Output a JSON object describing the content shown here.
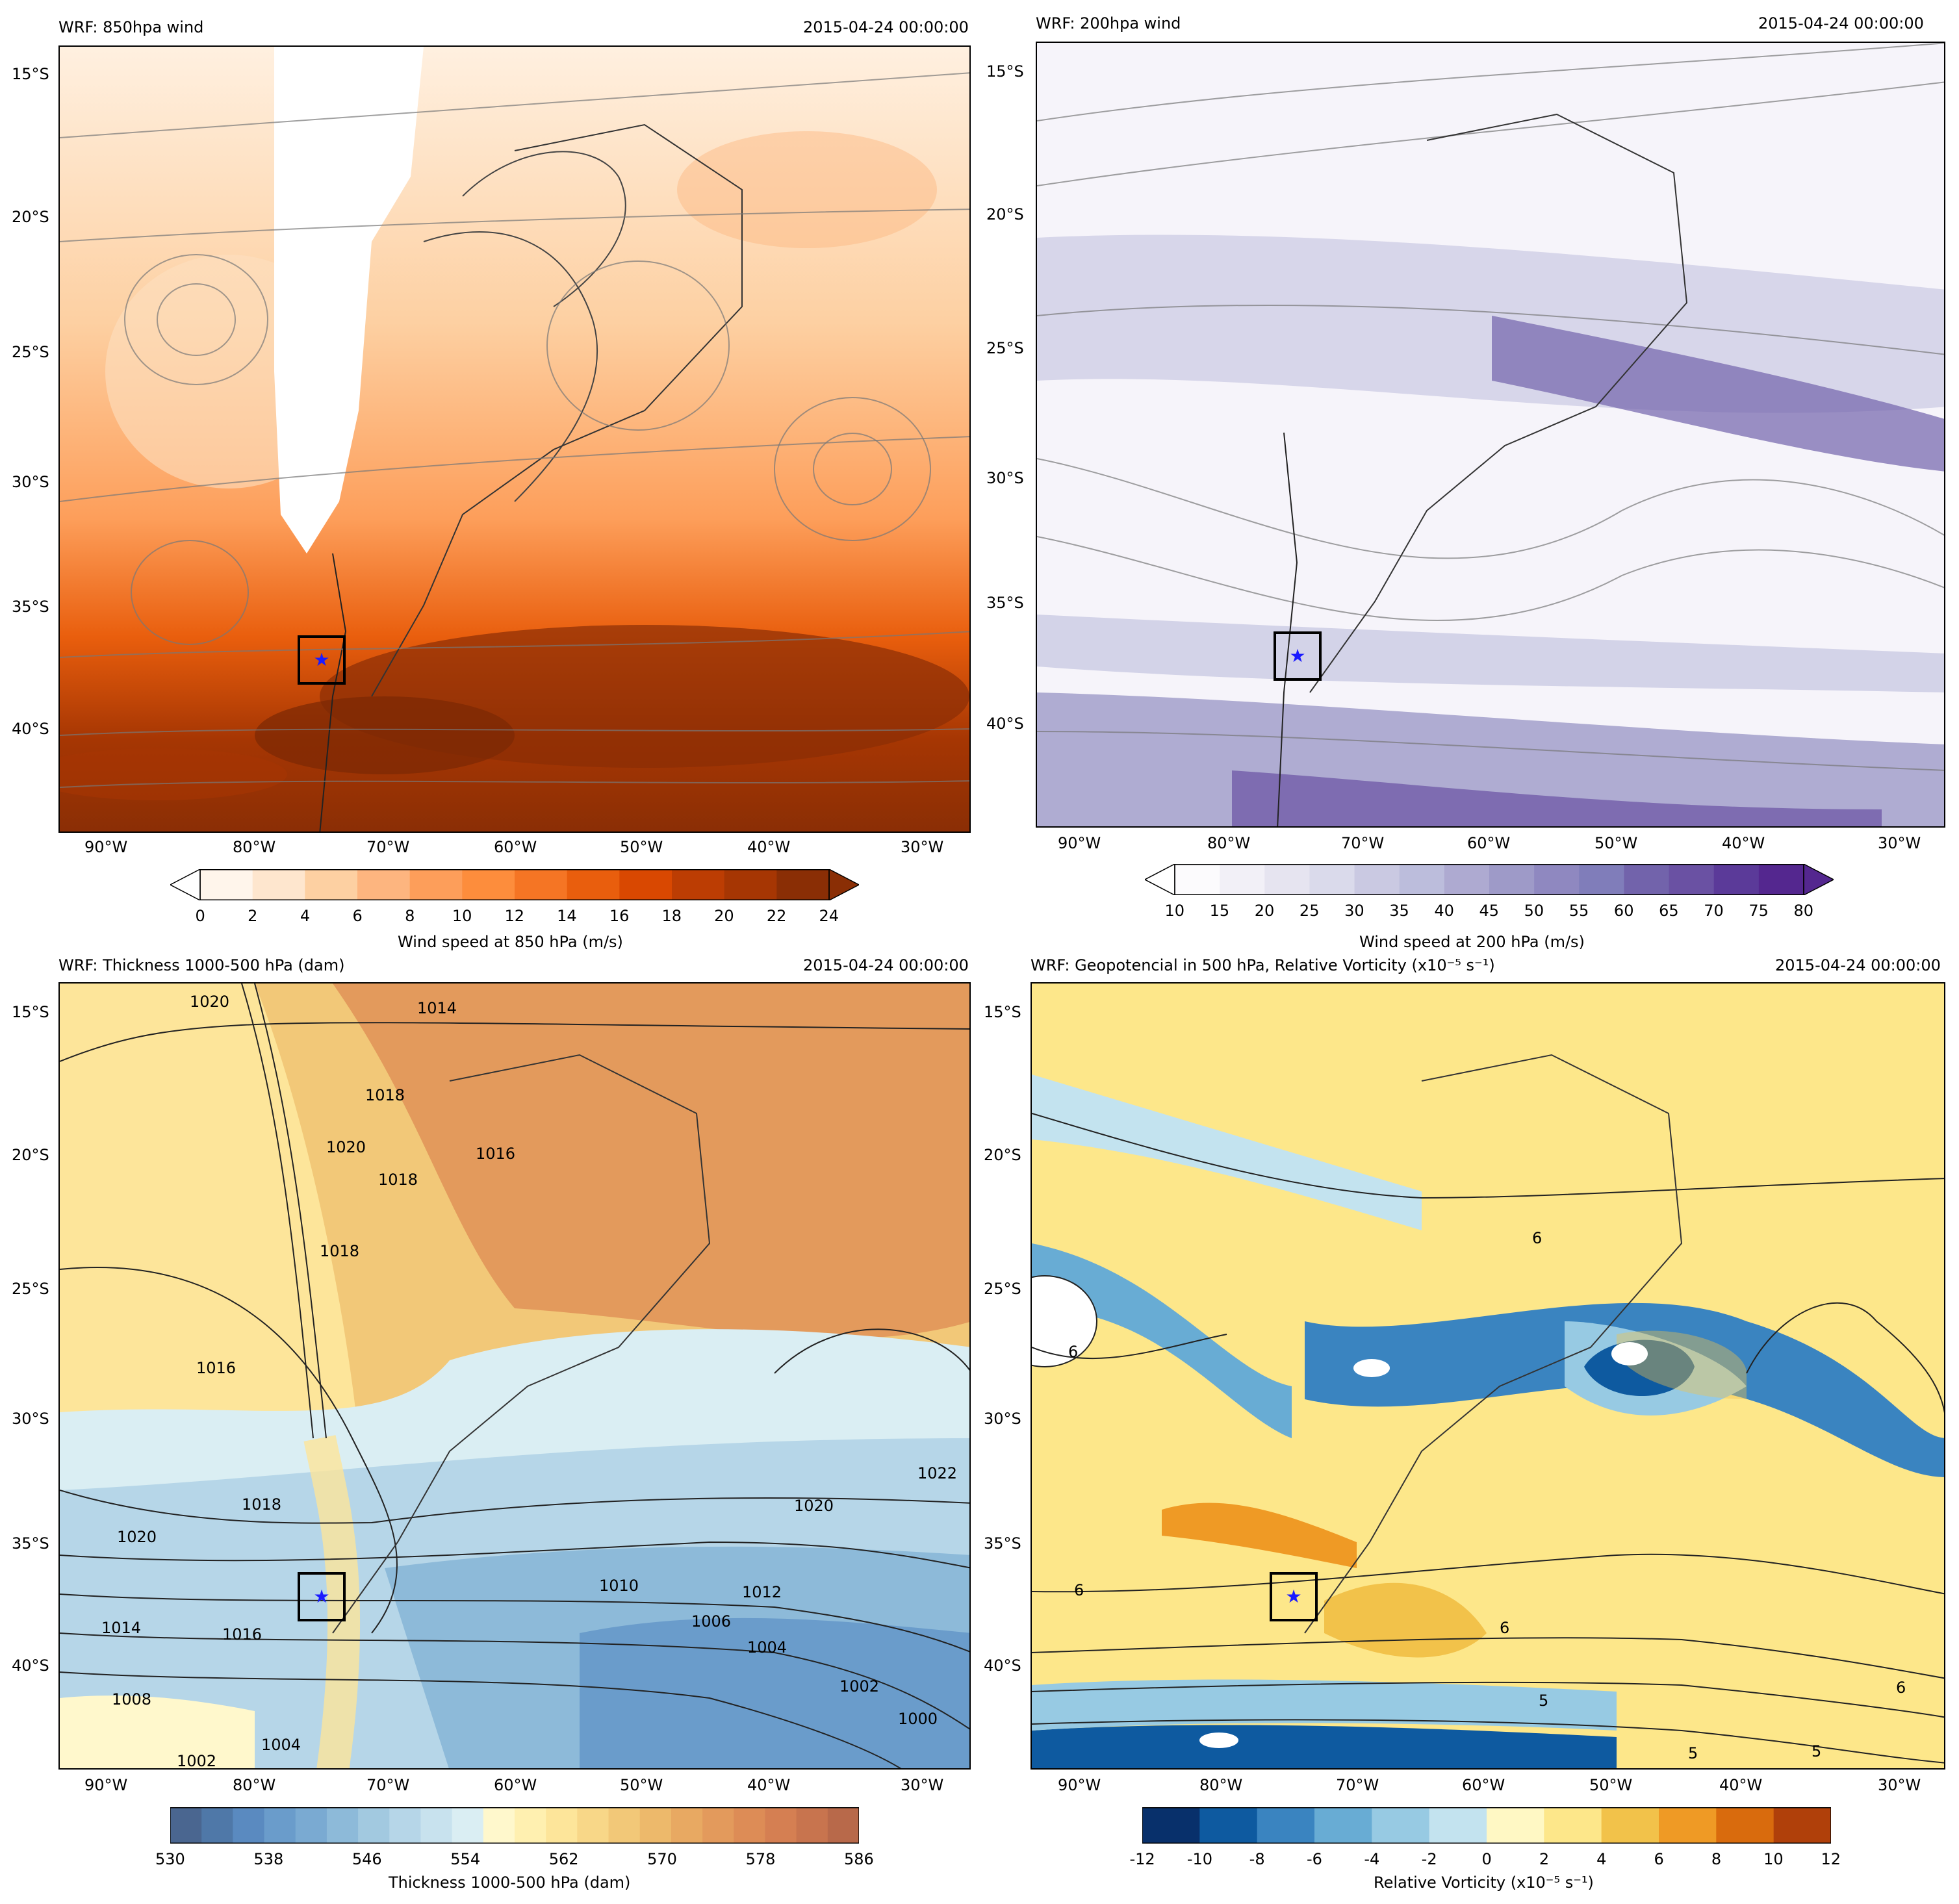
{
  "panels": [
    {
      "id": "p850",
      "title": "WRF: 850hpa wind",
      "date": "2015-04-24 00:00:00",
      "lat_labels": [
        "15°S",
        "20°S",
        "25°S",
        "30°S",
        "35°S",
        "40°S"
      ],
      "lon_labels": [
        "90°W",
        "80°W",
        "70°W",
        "60°W",
        "50°W",
        "40°W",
        "30°W"
      ],
      "colorbar": {
        "label": "Wind speed at 850 hPa (m/s)",
        "ticks": [
          "0",
          "2",
          "4",
          "6",
          "8",
          "10",
          "12",
          "14",
          "16",
          "18",
          "20",
          "22",
          "24"
        ],
        "colors": [
          "#fff5eb",
          "#fee6ce",
          "#fdd0a2",
          "#fdb57f",
          "#fd9e5a",
          "#fd8d3c",
          "#f57524",
          "#e95e0d",
          "#d94801",
          "#bc3d03",
          "#a63603",
          "#8a2e05"
        ],
        "extend": "both"
      }
    },
    {
      "id": "p200",
      "title": "WRF: 200hpa wind",
      "date": "2015-04-24 00:00:00",
      "lat_labels": [
        "15°S",
        "20°S",
        "25°S",
        "30°S",
        "35°S",
        "40°S"
      ],
      "lon_labels": [
        "90°W",
        "80°W",
        "70°W",
        "60°W",
        "50°W",
        "40°W",
        "30°W"
      ],
      "colorbar": {
        "label": "Wind speed at 200 hPa (m/s)",
        "ticks": [
          "10",
          "15",
          "20",
          "25",
          "30",
          "35",
          "40",
          "45",
          "50",
          "55",
          "60",
          "65",
          "70",
          "75",
          "80"
        ],
        "colors": [
          "#fcfbfd",
          "#f2f0f7",
          "#e6e4f0",
          "#dadaeb",
          "#cac9e2",
          "#bcbddc",
          "#aeaad1",
          "#9e9ac8",
          "#8f88c0",
          "#807dba",
          "#7263ab",
          "#6a51a3",
          "#5b3a99",
          "#54278f"
        ],
        "extend": "both"
      }
    },
    {
      "id": "pthick",
      "title": "WRF: Thickness 1000-500 hPa (dam)",
      "date": "2015-04-24 00:00:00",
      "lat_labels": [
        "15°S",
        "20°S",
        "25°S",
        "30°S",
        "35°S",
        "40°S"
      ],
      "lon_labels": [
        "90°W",
        "80°W",
        "70°W",
        "60°W",
        "50°W",
        "40°W",
        "30°W"
      ],
      "contour_labels": [
        "1014",
        "1020",
        "1018",
        "1016",
        "1018",
        "1018",
        "1020",
        "1016",
        "1018",
        "1020",
        "1014",
        "1016",
        "1010",
        "1012",
        "1006",
        "1004",
        "1002",
        "1000",
        "1008",
        "1004",
        "1002",
        "1022",
        "1020"
      ],
      "colorbar": {
        "label": "Thickness 1000-500 hPa (dam)",
        "ticks": [
          "530",
          "538",
          "546",
          "554",
          "562",
          "570",
          "578",
          "586"
        ],
        "colors": [
          "#4a6690",
          "#4f78a8",
          "#5a8ac0",
          "#6a9ccb",
          "#7aaad2",
          "#8dbad9",
          "#a2c9e0",
          "#b6d6e8",
          "#c8e2ee",
          "#daeef3",
          "#fff8cc",
          "#fff0b0",
          "#fde59a",
          "#f8d788",
          "#f2c878",
          "#edb96b",
          "#e8a962",
          "#e39a5c",
          "#dd8c56",
          "#d57f52",
          "#c8744e",
          "#b8694a"
        ],
        "extend": "none"
      }
    },
    {
      "id": "pvort",
      "title": "WRF: Geopotencial in 500 hPa, Relative Vorticity (x10⁻⁵ s⁻¹)",
      "date": "2015-04-24 00:00:00",
      "lat_labels": [
        "15°S",
        "20°S",
        "25°S",
        "30°S",
        "35°S",
        "40°S"
      ],
      "lon_labels": [
        "90°W",
        "80°W",
        "70°W",
        "60°W",
        "50°W",
        "40°W",
        "30°W"
      ],
      "contour_labels": [
        "6",
        "6",
        "6",
        "6",
        "6",
        "5",
        "5",
        "5"
      ],
      "colorbar": {
        "label": "Relative Vorticity (x10⁻⁵ s⁻¹)",
        "ticks": [
          "-12",
          "-10",
          "-8",
          "-6",
          "-4",
          "-2",
          "0",
          "2",
          "4",
          "6",
          "8",
          "10",
          "12"
        ],
        "colors": [
          "#08306b",
          "#0e5aa0",
          "#3a84c0",
          "#68acd4",
          "#97cae3",
          "#c3e3ef",
          "#fff8c4",
          "#fde78a",
          "#f2c24a",
          "#ef9a25",
          "#d96b0d",
          "#b0400a"
        ],
        "extend": "none"
      }
    }
  ]
}
